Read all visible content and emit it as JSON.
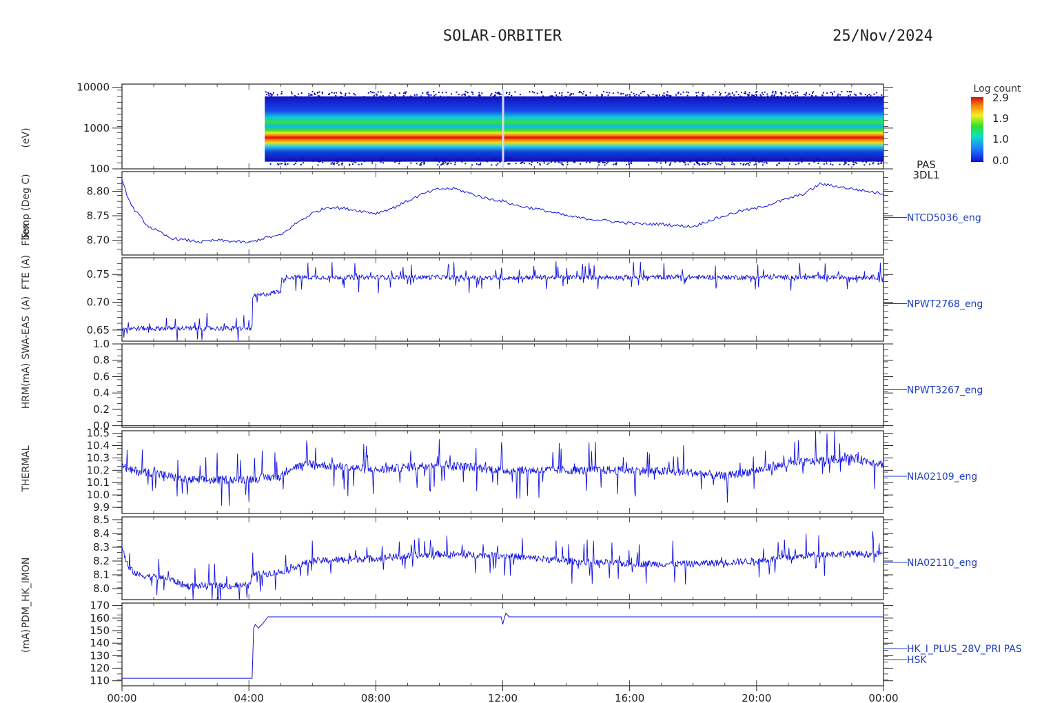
{
  "header": {
    "title": "SOLAR-ORBITER",
    "date": "25/Nov/2024"
  },
  "colorbar": {
    "title": "Log count",
    "ticks": [
      "2.9",
      "1.9",
      "1.0",
      "0.0"
    ]
  },
  "y_axis_labels_overlapping": [
    "(eV)",
    "Temp (Deg C)",
    "FTE (A)",
    "Fbox",
    "(A)",
    "HRM(mA)",
    "(mA)",
    "PDM_HK_IMON",
    "THERMAL",
    "SWA-EAS"
  ],
  "colors": {
    "line": "#1010e0",
    "label": "#1f3fbf",
    "axis": "#222222"
  },
  "x_axis": {
    "ticks": [
      "00:00",
      "04:00",
      "08:00",
      "12:00",
      "16:00",
      "20:00",
      "00:00"
    ],
    "range_hours": [
      0,
      24
    ]
  },
  "chart_data": [
    {
      "type": "heatmap",
      "instrument": "PAS",
      "product": "3DL1",
      "yscale": "log",
      "ylim": [
        100,
        12000
      ],
      "yticks": [
        "10000",
        "1000",
        "100"
      ],
      "colorscale": "log count 0.0 - 2.9 (blue-green-yellow-red)",
      "data_start_hour": 4.5,
      "band_peak_ev": 600,
      "band_range_ev": [
        150,
        6000
      ]
    },
    {
      "type": "line",
      "label": "NTCD5036_eng",
      "ylim": [
        8.67,
        8.84
      ],
      "yticks": [
        "8.80",
        "8.75",
        "8.70"
      ],
      "x": [
        0,
        0.3,
        0.8,
        1.5,
        2,
        2.5,
        3,
        3.5,
        4,
        4.5,
        5,
        5.5,
        6,
        6.5,
        7,
        7.5,
        8,
        8.5,
        9,
        9.5,
        10,
        10.5,
        11,
        11.5,
        12,
        12.5,
        13,
        13.5,
        14,
        14.5,
        15,
        15.5,
        16,
        16.5,
        17,
        17.5,
        18,
        18.5,
        19,
        19.5,
        20,
        20.5,
        21,
        21.5,
        22,
        22.5,
        23,
        23.5,
        24
      ],
      "y": [
        8.82,
        8.77,
        8.73,
        8.705,
        8.7,
        8.697,
        8.7,
        8.698,
        8.695,
        8.705,
        8.71,
        8.735,
        8.755,
        8.768,
        8.765,
        8.76,
        8.755,
        8.765,
        8.78,
        8.795,
        8.805,
        8.805,
        8.795,
        8.785,
        8.78,
        8.77,
        8.765,
        8.758,
        8.75,
        8.745,
        8.742,
        8.738,
        8.735,
        8.733,
        8.733,
        8.73,
        8.728,
        8.74,
        8.75,
        8.76,
        8.765,
        8.775,
        8.785,
        8.795,
        8.815,
        8.81,
        8.805,
        8.8,
        8.795
      ]
    },
    {
      "type": "line",
      "label": "NPWT2768_eng",
      "ylim": [
        0.63,
        0.78
      ],
      "yticks": [
        "0.75",
        "0.70",
        "0.65"
      ],
      "x": [
        0,
        4.1,
        4.12,
        5.0,
        5.05,
        6,
        8,
        10,
        12,
        14,
        16,
        18,
        20,
        22,
        24
      ],
      "y": [
        0.653,
        0.653,
        0.71,
        0.72,
        0.745,
        0.745,
        0.745,
        0.745,
        0.744,
        0.745,
        0.745,
        0.745,
        0.745,
        0.745,
        0.745
      ],
      "noise_amplitude": 0.012
    },
    {
      "type": "line",
      "label": "NPWT3267_eng",
      "ylim": [
        -0.02,
        1.0
      ],
      "yticks": [
        "1.0",
        "0.8",
        "0.6",
        "0.4",
        "0.2",
        "0.0"
      ],
      "x": [
        0,
        24
      ],
      "y": [
        0.0,
        0.0
      ]
    },
    {
      "type": "line",
      "label": "NIA02109_eng",
      "ylim": [
        9.85,
        10.52
      ],
      "yticks": [
        "10.5",
        "10.4",
        "10.3",
        "10.2",
        "10.1",
        "10.0",
        "9.9"
      ],
      "x": [
        0,
        0.2,
        1,
        1.5,
        2,
        3,
        4,
        5,
        5.3,
        6,
        8,
        10,
        12,
        14,
        16,
        18,
        19,
        20,
        21,
        22,
        23,
        24
      ],
      "y": [
        10.25,
        10.2,
        10.18,
        10.15,
        10.12,
        10.12,
        10.13,
        10.15,
        10.22,
        10.25,
        10.2,
        10.25,
        10.2,
        10.2,
        10.2,
        10.18,
        10.15,
        10.2,
        10.25,
        10.28,
        10.3,
        10.25
      ],
      "noise_amplitude": 0.1
    },
    {
      "type": "line",
      "label": "NIA02110_eng",
      "ylim": [
        7.92,
        8.52
      ],
      "yticks": [
        "8.5",
        "8.4",
        "8.3",
        "8.2",
        "8.1",
        "8.0"
      ],
      "x": [
        0,
        0.2,
        0.5,
        1.5,
        2,
        3,
        4,
        4.1,
        5,
        5.3,
        6,
        8,
        10,
        12,
        14,
        16,
        18,
        20,
        22,
        24
      ],
      "y": [
        8.3,
        8.15,
        8.1,
        8.07,
        8.02,
        8.02,
        8.02,
        8.1,
        8.12,
        8.15,
        8.2,
        8.22,
        8.25,
        8.24,
        8.2,
        8.18,
        8.18,
        8.2,
        8.25,
        8.25
      ],
      "noise_amplitude": 0.07
    },
    {
      "type": "line",
      "label": "HK_I_PLUS_28V_PRI PAS",
      "label2": "HSK",
      "ylim": [
        106,
        172
      ],
      "yticks": [
        "170",
        "160",
        "150",
        "140",
        "130",
        "120",
        "110"
      ],
      "x": [
        0,
        4.1,
        4.12,
        4.2,
        4.3,
        4.45,
        4.6,
        5,
        8,
        11.98,
        12.0,
        12.05,
        12.1,
        12.2,
        16,
        20,
        24
      ],
      "y": [
        112,
        112,
        150,
        155,
        152,
        156,
        161,
        161,
        161,
        161,
        155,
        160,
        164,
        161,
        161,
        161,
        161
      ]
    }
  ]
}
